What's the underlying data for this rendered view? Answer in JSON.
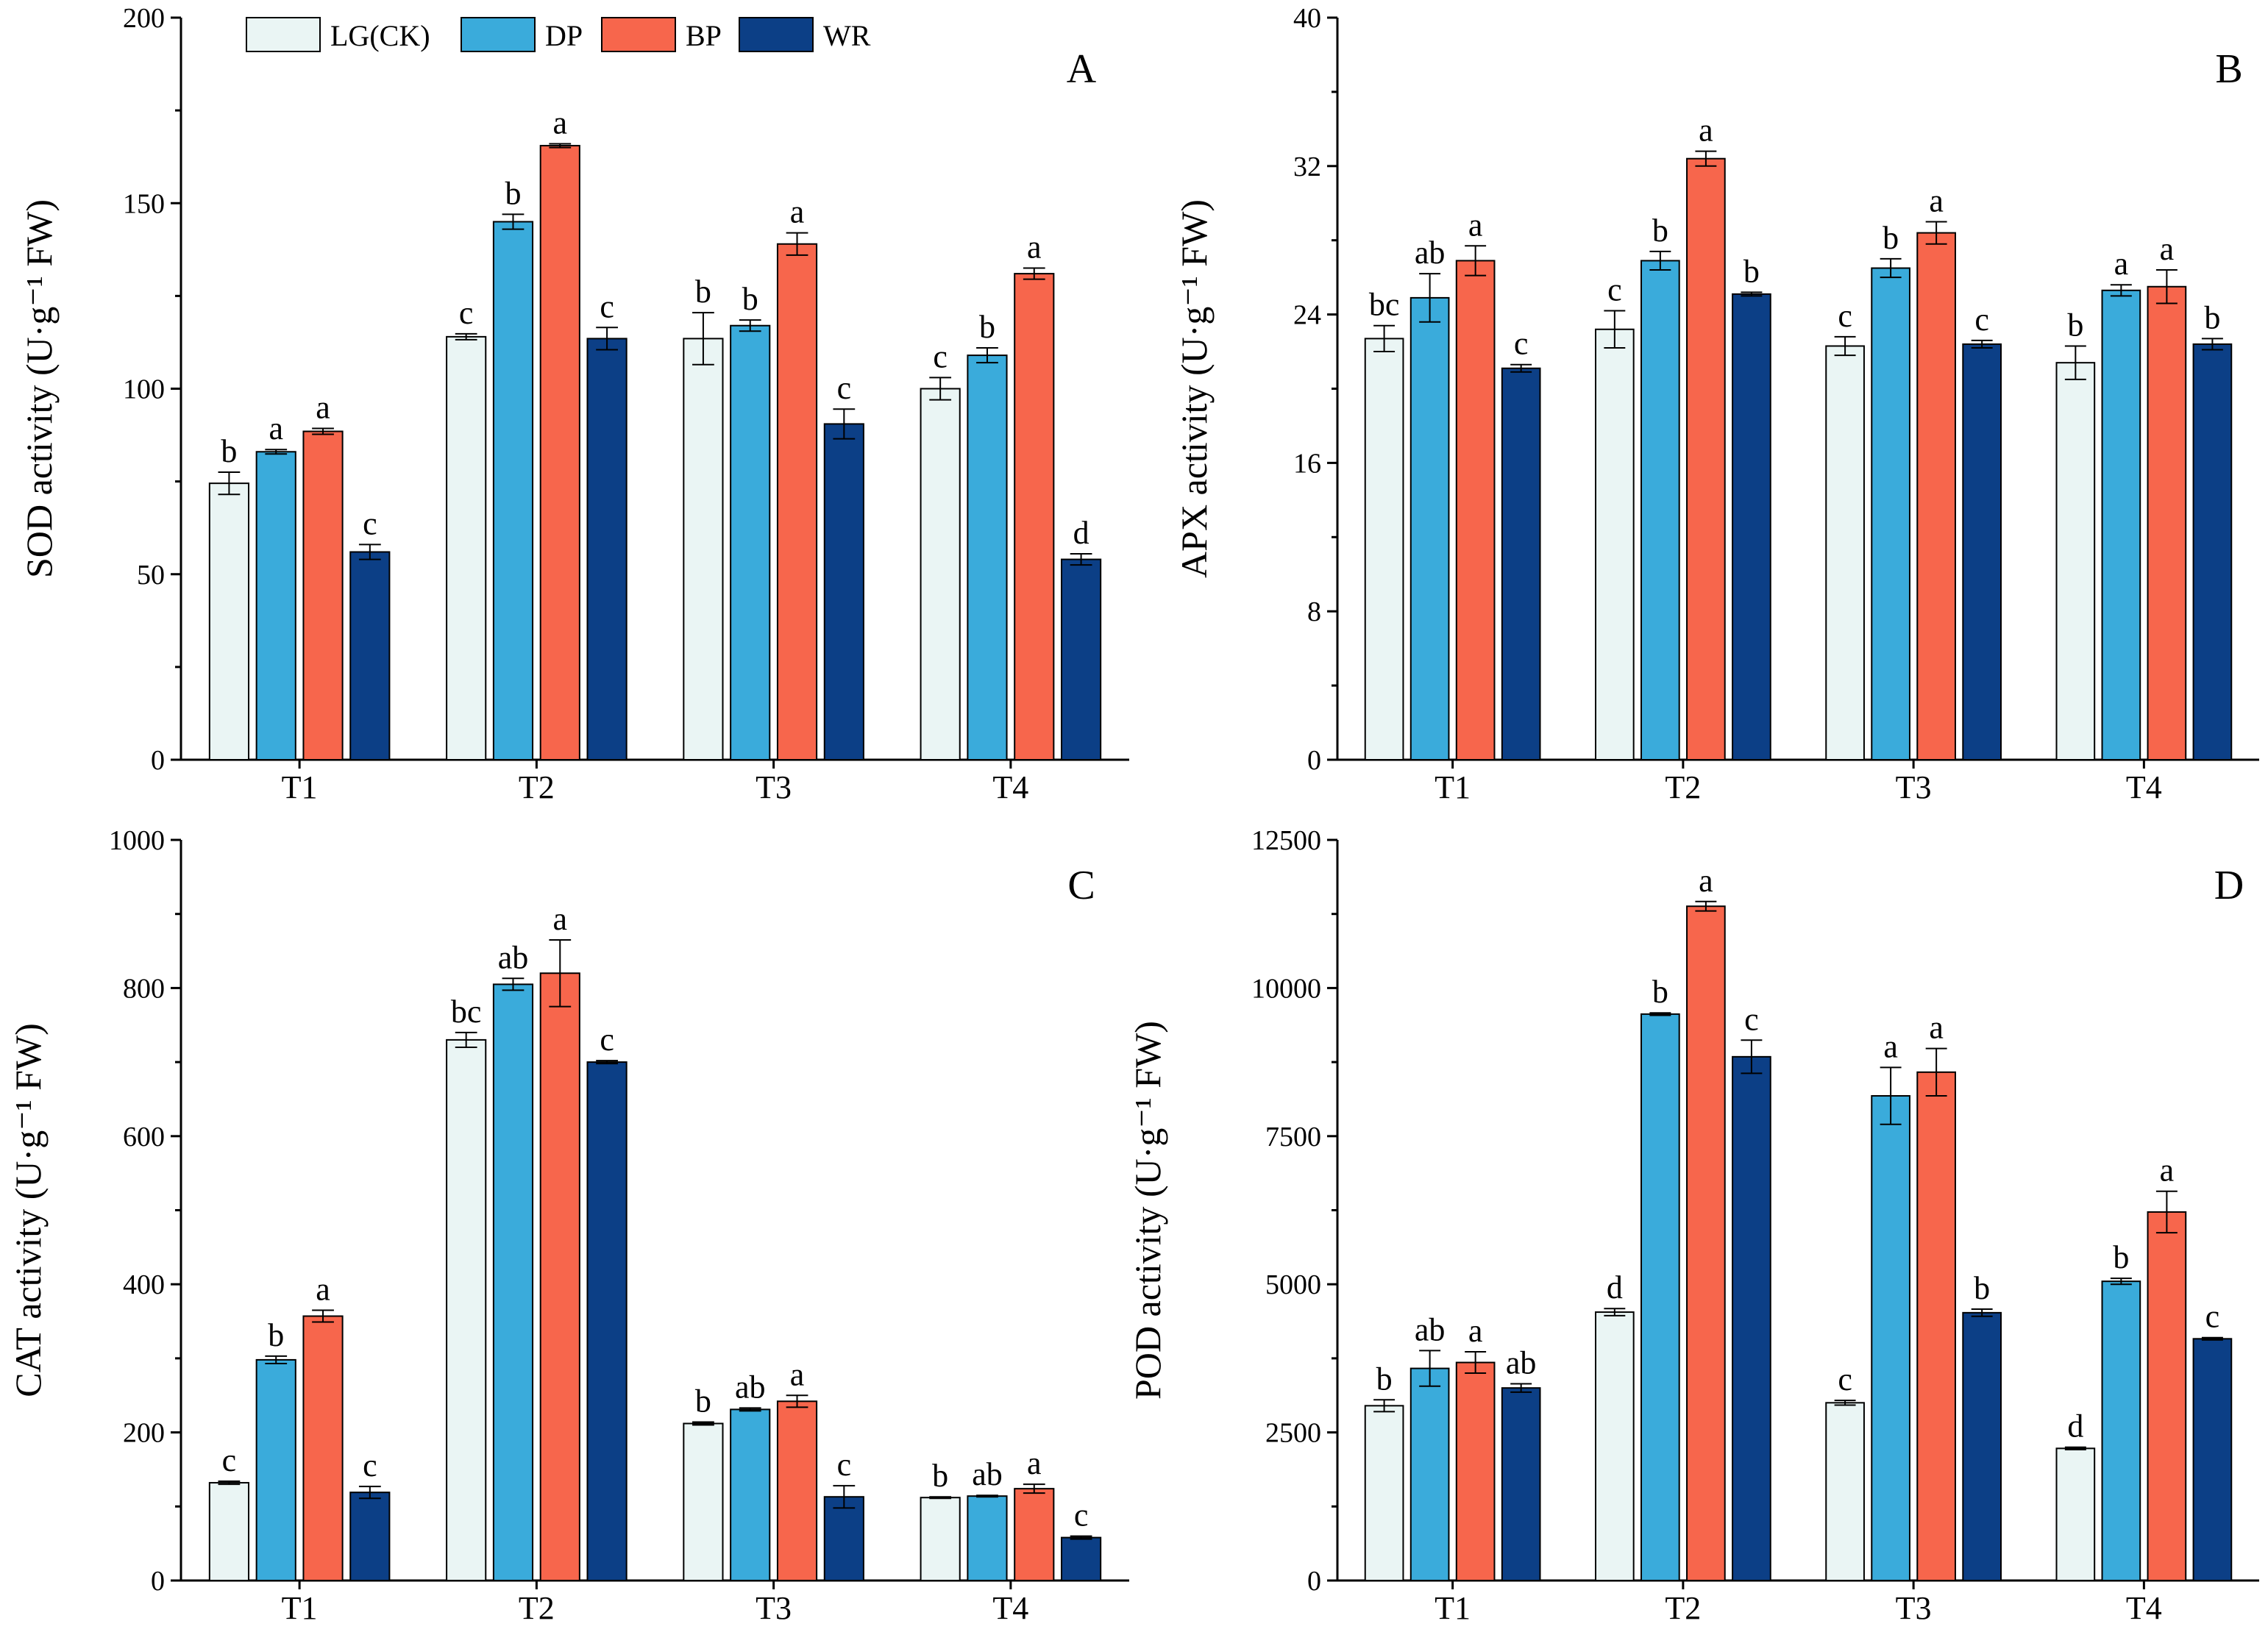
{
  "legend": {
    "items": [
      {
        "name": "LG(CK)",
        "color": "#EAF5F4"
      },
      {
        "name": "DP",
        "color": "#3AABDB"
      },
      {
        "name": "BP",
        "color": "#F7664C"
      },
      {
        "name": "WR",
        "color": "#0C3F86"
      }
    ]
  },
  "chart_data": [
    {
      "type": "bar",
      "panel": "A",
      "ylabel": "SOD activity (U·g⁻¹ FW)",
      "ylim": [
        0,
        200
      ],
      "yticks": [
        "0",
        "50",
        "100",
        "150",
        "200"
      ],
      "categories": [
        "T1",
        "T2",
        "T3",
        "T4"
      ],
      "series": [
        {
          "name": "LG(CK)",
          "values": [
            74.5,
            114,
            113.5,
            100
          ],
          "errors": [
            3,
            0.8,
            7,
            3
          ],
          "letters": [
            "b",
            "c",
            "b",
            "c"
          ]
        },
        {
          "name": "DP",
          "values": [
            83,
            145,
            117,
            109
          ],
          "errors": [
            0.6,
            2,
            1.5,
            2
          ],
          "letters": [
            "a",
            "b",
            "b",
            "b"
          ]
        },
        {
          "name": "BP",
          "values": [
            88.5,
            165.5,
            139,
            131
          ],
          "errors": [
            0.8,
            0.5,
            3,
            1.5
          ],
          "letters": [
            "a",
            "a",
            "a",
            "a"
          ]
        },
        {
          "name": "WR",
          "values": [
            56,
            113.5,
            90.5,
            54
          ],
          "errors": [
            2,
            3,
            4,
            1.5
          ],
          "letters": [
            "c",
            "c",
            "c",
            "d"
          ]
        }
      ]
    },
    {
      "type": "bar",
      "panel": "B",
      "ylabel": "APX activity (U·g⁻¹ FW)",
      "ylim": [
        0,
        40
      ],
      "yticks": [
        "0",
        "8",
        "16",
        "24",
        "32",
        "40"
      ],
      "categories": [
        "T1",
        "T2",
        "T3",
        "T4"
      ],
      "series": [
        {
          "name": "LG(CK)",
          "values": [
            22.7,
            23.2,
            22.3,
            21.4
          ],
          "errors": [
            0.7,
            1,
            0.5,
            0.9
          ],
          "letters": [
            "bc",
            "c",
            "c",
            "b"
          ]
        },
        {
          "name": "DP",
          "values": [
            24.9,
            26.9,
            26.5,
            25.3
          ],
          "errors": [
            1.3,
            0.5,
            0.5,
            0.3
          ],
          "letters": [
            "ab",
            "b",
            "b",
            "a"
          ]
        },
        {
          "name": "BP",
          "values": [
            26.9,
            32.4,
            28.4,
            25.5
          ],
          "errors": [
            0.8,
            0.4,
            0.6,
            0.9
          ],
          "letters": [
            "a",
            "a",
            "a",
            "a"
          ]
        },
        {
          "name": "WR",
          "values": [
            21.1,
            25.1,
            22.4,
            22.4
          ],
          "errors": [
            0.2,
            0.1,
            0.2,
            0.3
          ],
          "letters": [
            "c",
            "b",
            "c",
            "b"
          ]
        }
      ]
    },
    {
      "type": "bar",
      "panel": "C",
      "ylabel": "CAT activity (U·g⁻¹ FW)",
      "ylim": [
        0,
        1000
      ],
      "yticks": [
        "0",
        "200",
        "400",
        "600",
        "800",
        "1000"
      ],
      "categories": [
        "T1",
        "T2",
        "T3",
        "T4"
      ],
      "series": [
        {
          "name": "LG(CK)",
          "values": [
            132,
            730,
            212,
            112
          ],
          "errors": [
            2,
            10,
            2,
            1
          ],
          "letters": [
            "c",
            "bc",
            "b",
            "b"
          ]
        },
        {
          "name": "DP",
          "values": [
            298,
            805,
            231,
            114
          ],
          "errors": [
            5,
            8,
            2,
            1
          ],
          "letters": [
            "b",
            "ab",
            "ab",
            "ab"
          ]
        },
        {
          "name": "BP",
          "values": [
            357,
            820,
            242,
            124
          ],
          "errors": [
            8,
            45,
            8,
            6
          ],
          "letters": [
            "a",
            "a",
            "a",
            "a"
          ]
        },
        {
          "name": "WR",
          "values": [
            119,
            700,
            113,
            58
          ],
          "errors": [
            8,
            2,
            15,
            2
          ],
          "letters": [
            "c",
            "c",
            "c",
            "c"
          ]
        }
      ]
    },
    {
      "type": "bar",
      "panel": "D",
      "ylabel": "POD activity (U·g⁻¹ FW)",
      "ylim": [
        0,
        12500
      ],
      "yticks": [
        "0",
        "2500",
        "5000",
        "7500",
        "10000",
        "12500"
      ],
      "categories": [
        "T1",
        "T2",
        "T3",
        "T4"
      ],
      "series": [
        {
          "name": "LG(CK)",
          "values": [
            2950,
            4530,
            3000,
            2230
          ],
          "errors": [
            100,
            60,
            40,
            20
          ],
          "letters": [
            "b",
            "d",
            "c",
            "d"
          ]
        },
        {
          "name": "DP",
          "values": [
            3580,
            9560,
            8180,
            5050
          ],
          "errors": [
            300,
            20,
            480,
            50
          ],
          "letters": [
            "ab",
            "b",
            "a",
            "b"
          ]
        },
        {
          "name": "BP",
          "values": [
            3680,
            11380,
            8580,
            6220
          ],
          "errors": [
            180,
            80,
            400,
            350
          ],
          "letters": [
            "a",
            "a",
            "a",
            "a"
          ]
        },
        {
          "name": "WR",
          "values": [
            3250,
            8840,
            4520,
            4080
          ],
          "errors": [
            70,
            280,
            60,
            20
          ],
          "letters": [
            "ab",
            "c",
            "b",
            "c"
          ]
        }
      ]
    }
  ]
}
